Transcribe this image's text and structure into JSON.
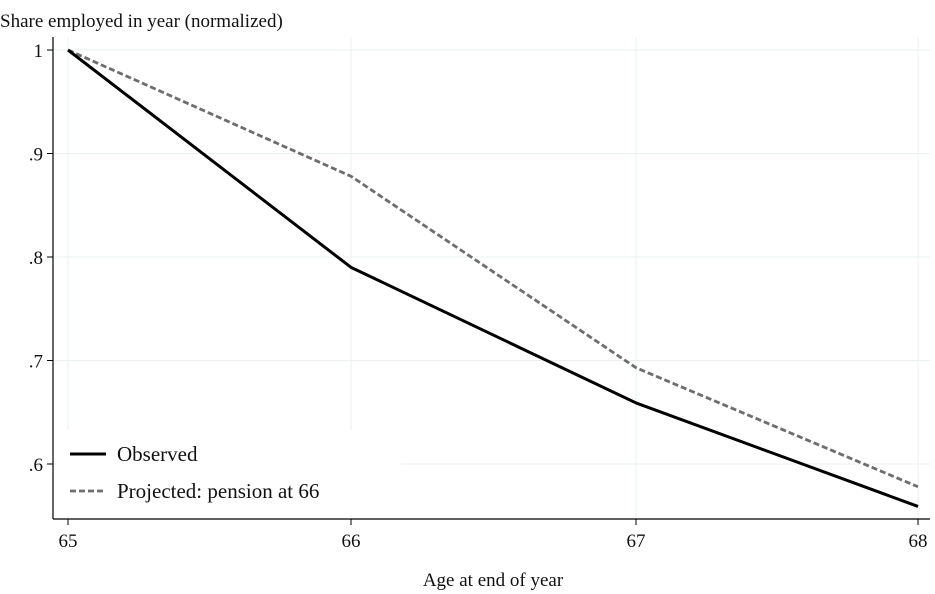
{
  "chart_data": {
    "type": "line",
    "title": "",
    "ylabel": "Share employed in year (normalized)",
    "xlabel": "Age at end of year",
    "x": [
      65,
      66,
      67,
      68
    ],
    "x_ticks": [
      {
        "value": 65,
        "label": "65"
      },
      {
        "value": 66,
        "label": "66"
      },
      {
        "value": 67,
        "label": "67"
      },
      {
        "value": 68,
        "label": "68"
      }
    ],
    "y_ticks": [
      {
        "value": 0.6,
        "label": ".6"
      },
      {
        "value": 0.7,
        "label": ".7"
      },
      {
        "value": 0.8,
        "label": ".8"
      },
      {
        "value": 0.9,
        "label": ".9"
      },
      {
        "value": 1.0,
        "label": "1"
      }
    ],
    "xlim": [
      65,
      68
    ],
    "ylim": [
      0.54,
      1.0
    ],
    "grid": true,
    "legend": "bottom-left",
    "series": [
      {
        "name": "Observed",
        "values": [
          1.0,
          0.79,
          0.659,
          0.559
        ],
        "color": "#000000",
        "style": "solid"
      },
      {
        "name": "Projected: pension at 66",
        "values": [
          1.0,
          0.878,
          0.693,
          0.578
        ],
        "color": "#6e6e6e",
        "style": "dashed"
      }
    ]
  }
}
